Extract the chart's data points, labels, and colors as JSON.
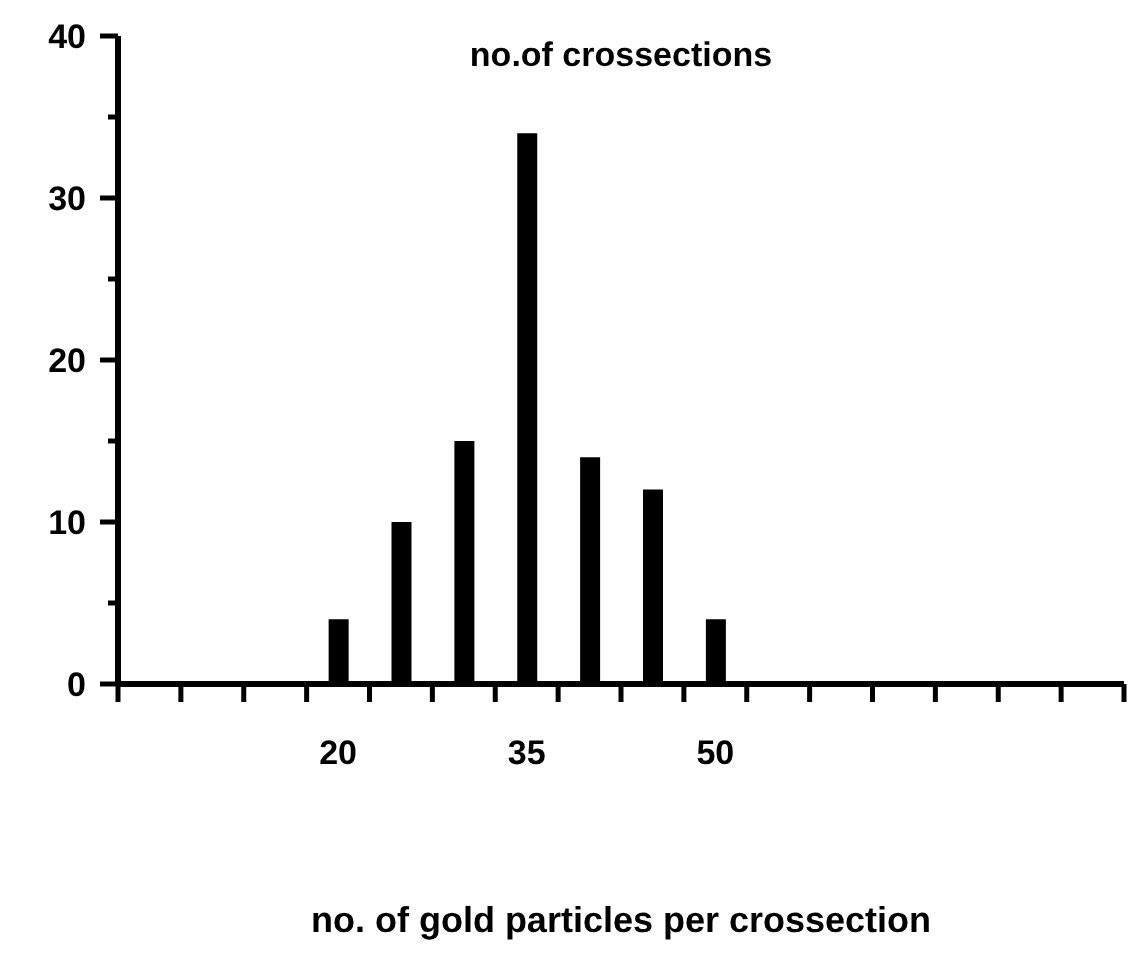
{
  "chart_data": {
    "type": "bar",
    "title": "no.of crossections",
    "xlabel": "no. of gold particles per crossection",
    "x": [
      20,
      25,
      30,
      35,
      40,
      45,
      50
    ],
    "values": [
      4,
      10,
      15,
      34,
      14,
      12,
      4
    ],
    "color": "#000000",
    "xlim": [
      2.5,
      82.5
    ],
    "xticks": [
      {
        "value": 2.5,
        "label": null
      },
      {
        "value": 7.5,
        "label": null
      },
      {
        "value": 12.5,
        "label": null
      },
      {
        "value": 17.5,
        "label": null
      },
      {
        "value": 20,
        "label": "20"
      },
      {
        "value": 22.5,
        "label": null
      },
      {
        "value": 27.5,
        "label": null
      },
      {
        "value": 32.5,
        "label": null
      },
      {
        "value": 35,
        "label": "35"
      },
      {
        "value": 37.5,
        "label": null
      },
      {
        "value": 42.5,
        "label": null
      },
      {
        "value": 47.5,
        "label": null
      },
      {
        "value": 50,
        "label": "50"
      },
      {
        "value": 52.5,
        "label": null
      },
      {
        "value": 57.5,
        "label": null
      },
      {
        "value": 62.5,
        "label": null
      },
      {
        "value": 67.5,
        "label": null
      },
      {
        "value": 72.5,
        "label": null
      },
      {
        "value": 77.5,
        "label": null
      },
      {
        "value": 82.5,
        "label": null
      }
    ],
    "ylim": [
      0,
      40
    ],
    "yticks": [
      0,
      {
        "value": 5,
        "label": null
      },
      10,
      {
        "value": 15,
        "label": null
      },
      20,
      {
        "value": 25,
        "label": null
      },
      30,
      {
        "value": 35,
        "label": null
      },
      40
    ],
    "grid": false
  }
}
